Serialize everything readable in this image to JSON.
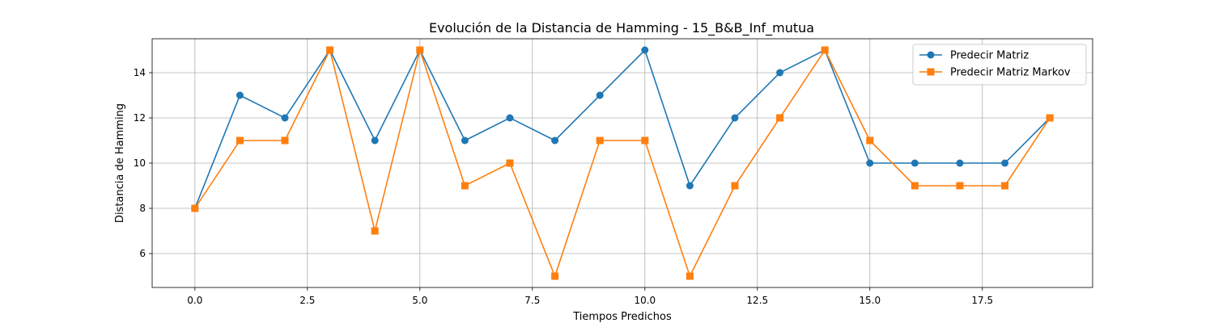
{
  "chart_data": {
    "type": "line",
    "title": "Evolución de la Distancia de Hamming - 15_B&B_Inf_mutua",
    "xlabel": "Tiempos Predichos",
    "ylabel": "Distancia de Hamming",
    "xlim": [
      -0.95,
      19.95
    ],
    "ylim": [
      4.5,
      15.5
    ],
    "xticks": [
      0,
      2.5,
      5,
      7.5,
      10,
      12.5,
      15,
      17.5
    ],
    "xtick_labels": [
      "0.0",
      "2.5",
      "5.0",
      "7.5",
      "10.0",
      "12.5",
      "15.0",
      "17.5"
    ],
    "yticks": [
      6,
      8,
      10,
      12,
      14
    ],
    "ytick_labels": [
      "6",
      "8",
      "10",
      "12",
      "14"
    ],
    "grid": true,
    "legend_position": "top-right",
    "x": [
      0,
      1,
      2,
      3,
      4,
      5,
      6,
      7,
      8,
      9,
      10,
      11,
      12,
      13,
      14,
      15,
      16,
      17,
      18,
      19
    ],
    "series": [
      {
        "name": "Predecir Matriz",
        "color": "#1f77b4",
        "marker": "circle",
        "values": [
          8,
          13,
          12,
          15,
          11,
          15,
          11,
          12,
          11,
          13,
          15,
          9,
          12,
          14,
          15,
          10,
          10,
          10,
          10,
          12
        ]
      },
      {
        "name": "Predecir Matriz Markov",
        "color": "#ff7f0e",
        "marker": "square",
        "values": [
          8,
          11,
          11,
          15,
          7,
          15,
          9,
          10,
          5,
          11,
          11,
          5,
          9,
          12,
          15,
          11,
          9,
          9,
          9,
          12
        ]
      }
    ]
  }
}
